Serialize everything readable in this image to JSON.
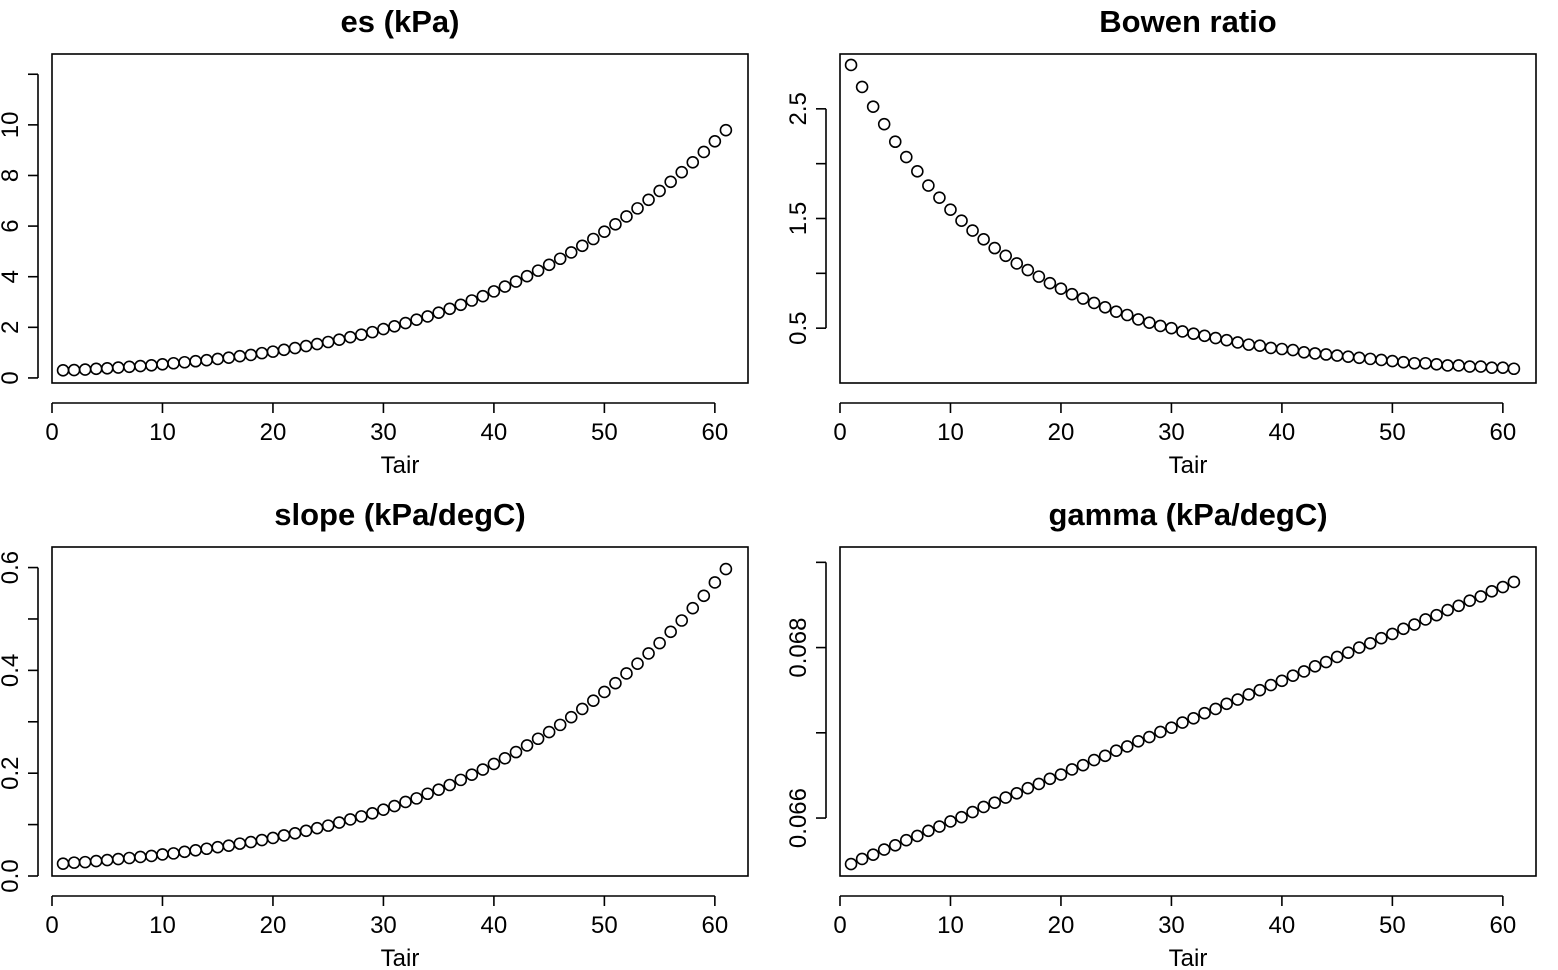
{
  "chart_data": [
    {
      "type": "scatter",
      "title": "es (kPa)",
      "xlabel": "Tair",
      "ylabel": "",
      "xlim": [
        0,
        63
      ],
      "ylim": [
        -0.2,
        12.8
      ],
      "xticks": [
        "0",
        "10",
        "20",
        "30",
        "40",
        "50",
        "60"
      ],
      "xtick_values": [
        0,
        10,
        20,
        30,
        40,
        50,
        60
      ],
      "yticks": [
        "0",
        "2",
        "4",
        "6",
        "8",
        "10"
      ],
      "ytick_values": [
        0,
        2,
        4,
        6,
        8,
        10
      ],
      "extra_y_tick_values": [
        12
      ],
      "x": [
        1,
        2,
        3,
        4,
        5,
        6,
        7,
        8,
        9,
        10,
        11,
        12,
        13,
        14,
        15,
        16,
        17,
        18,
        19,
        20,
        21,
        22,
        23,
        24,
        25,
        26,
        27,
        28,
        29,
        30,
        31,
        32,
        33,
        34,
        35,
        36,
        37,
        38,
        39,
        40,
        41,
        42,
        43,
        44,
        45,
        46,
        47,
        48,
        49,
        50,
        51,
        52,
        53,
        54,
        55,
        56,
        57,
        58,
        59,
        60,
        61
      ],
      "y": [
        0.3,
        0.31,
        0.33,
        0.36,
        0.38,
        0.41,
        0.44,
        0.47,
        0.5,
        0.54,
        0.58,
        0.62,
        0.66,
        0.7,
        0.75,
        0.8,
        0.86,
        0.91,
        0.98,
        1.04,
        1.11,
        1.18,
        1.26,
        1.34,
        1.42,
        1.51,
        1.61,
        1.71,
        1.81,
        1.93,
        2.04,
        2.17,
        2.3,
        2.43,
        2.58,
        2.73,
        2.89,
        3.06,
        3.23,
        3.42,
        3.61,
        3.81,
        4.02,
        4.24,
        4.47,
        4.71,
        4.96,
        5.22,
        5.49,
        5.78,
        6.07,
        6.38,
        6.7,
        7.04,
        7.39,
        7.75,
        8.13,
        8.52,
        8.93,
        9.35,
        9.79
      ]
    },
    {
      "type": "scatter",
      "title": "Bowen ratio",
      "xlabel": "Tair",
      "ylabel": "",
      "xlim": [
        0,
        63
      ],
      "ylim": [
        0.0,
        3.0
      ],
      "xticks": [
        "0",
        "10",
        "20",
        "30",
        "40",
        "50",
        "60"
      ],
      "xtick_values": [
        0,
        10,
        20,
        30,
        40,
        50,
        60
      ],
      "yticks": [
        "0.5",
        "1.5",
        "2.5"
      ],
      "ytick_values": [
        0.5,
        1.5,
        2.5
      ],
      "extra_y_tick_values": [
        1.0,
        2.0
      ],
      "x": [
        1,
        2,
        3,
        4,
        5,
        6,
        7,
        8,
        9,
        10,
        11,
        12,
        13,
        14,
        15,
        16,
        17,
        18,
        19,
        20,
        21,
        22,
        23,
        24,
        25,
        26,
        27,
        28,
        29,
        30,
        31,
        32,
        33,
        34,
        35,
        36,
        37,
        38,
        39,
        40,
        41,
        42,
        43,
        44,
        45,
        46,
        47,
        48,
        49,
        50,
        51,
        52,
        53,
        54,
        55,
        56,
        57,
        58,
        59,
        60,
        61
      ],
      "y": [
        2.9,
        2.7,
        2.52,
        2.36,
        2.2,
        2.06,
        1.93,
        1.8,
        1.69,
        1.58,
        1.48,
        1.39,
        1.31,
        1.23,
        1.16,
        1.09,
        1.03,
        0.97,
        0.91,
        0.86,
        0.81,
        0.77,
        0.73,
        0.69,
        0.65,
        0.62,
        0.58,
        0.55,
        0.52,
        0.5,
        0.47,
        0.45,
        0.43,
        0.41,
        0.39,
        0.37,
        0.35,
        0.34,
        0.32,
        0.31,
        0.3,
        0.28,
        0.27,
        0.26,
        0.25,
        0.24,
        0.23,
        0.22,
        0.21,
        0.2,
        0.19,
        0.18,
        0.18,
        0.17,
        0.16,
        0.16,
        0.15,
        0.15,
        0.14,
        0.14,
        0.13
      ]
    },
    {
      "type": "scatter",
      "title": "slope (kPa/degC)",
      "xlabel": "Tair",
      "ylabel": "",
      "xlim": [
        0,
        63
      ],
      "ylim": [
        0.0,
        0.64
      ],
      "xticks": [
        "0",
        "10",
        "20",
        "30",
        "40",
        "50",
        "60"
      ],
      "xtick_values": [
        0,
        10,
        20,
        30,
        40,
        50,
        60
      ],
      "yticks": [
        "0.0",
        "0.2",
        "0.4",
        "0.6"
      ],
      "ytick_values": [
        0.0,
        0.2,
        0.4,
        0.6
      ],
      "extra_y_tick_values": [
        0.1,
        0.3,
        0.5
      ],
      "x": [
        1,
        2,
        3,
        4,
        5,
        6,
        7,
        8,
        9,
        10,
        11,
        12,
        13,
        14,
        15,
        16,
        17,
        18,
        19,
        20,
        21,
        22,
        23,
        24,
        25,
        26,
        27,
        28,
        29,
        30,
        31,
        32,
        33,
        34,
        35,
        36,
        37,
        38,
        39,
        40,
        41,
        42,
        43,
        44,
        45,
        46,
        47,
        48,
        49,
        50,
        51,
        52,
        53,
        54,
        55,
        56,
        57,
        58,
        59,
        60,
        61
      ],
      "y": [
        0.024,
        0.026,
        0.027,
        0.029,
        0.031,
        0.033,
        0.035,
        0.037,
        0.039,
        0.042,
        0.044,
        0.047,
        0.05,
        0.053,
        0.056,
        0.059,
        0.063,
        0.066,
        0.07,
        0.074,
        0.079,
        0.083,
        0.088,
        0.093,
        0.098,
        0.104,
        0.11,
        0.116,
        0.122,
        0.129,
        0.136,
        0.144,
        0.151,
        0.16,
        0.168,
        0.177,
        0.187,
        0.197,
        0.207,
        0.218,
        0.229,
        0.241,
        0.254,
        0.267,
        0.28,
        0.294,
        0.309,
        0.325,
        0.341,
        0.358,
        0.375,
        0.394,
        0.413,
        0.433,
        0.453,
        0.475,
        0.497,
        0.521,
        0.545,
        0.571,
        0.597
      ]
    },
    {
      "type": "scatter",
      "title": "gamma (kPa/degC)",
      "xlabel": "Tair",
      "ylabel": "",
      "xlim": [
        0,
        63
      ],
      "ylim": [
        0.06532,
        0.06918
      ],
      "xticks": [
        "0",
        "10",
        "20",
        "30",
        "40",
        "50",
        "60"
      ],
      "xtick_values": [
        0,
        10,
        20,
        30,
        40,
        50,
        60
      ],
      "yticks": [
        "0.066",
        "0.068"
      ],
      "ytick_values": [
        0.066,
        0.068
      ],
      "extra_y_tick_values": [
        0.067,
        0.069
      ],
      "x": [
        1,
        2,
        3,
        4,
        5,
        6,
        7,
        8,
        9,
        10,
        11,
        12,
        13,
        14,
        15,
        16,
        17,
        18,
        19,
        20,
        21,
        22,
        23,
        24,
        25,
        26,
        27,
        28,
        29,
        30,
        31,
        32,
        33,
        34,
        35,
        36,
        37,
        38,
        39,
        40,
        41,
        42,
        43,
        44,
        45,
        46,
        47,
        48,
        49,
        50,
        51,
        52,
        53,
        54,
        55,
        56,
        57,
        58,
        59,
        60,
        61
      ],
      "y": [
        0.06546,
        0.06552,
        0.06557,
        0.06563,
        0.06568,
        0.06574,
        0.06579,
        0.06585,
        0.0659,
        0.06596,
        0.06601,
        0.06607,
        0.06613,
        0.06618,
        0.06624,
        0.06629,
        0.06635,
        0.0664,
        0.06646,
        0.06651,
        0.06657,
        0.06662,
        0.06668,
        0.06673,
        0.06679,
        0.06684,
        0.0669,
        0.06695,
        0.06701,
        0.06706,
        0.06712,
        0.06717,
        0.06723,
        0.06728,
        0.06734,
        0.06739,
        0.06745,
        0.0675,
        0.06756,
        0.06761,
        0.06767,
        0.06772,
        0.06778,
        0.06783,
        0.06789,
        0.06794,
        0.068,
        0.06805,
        0.06811,
        0.06816,
        0.06822,
        0.06827,
        0.06833,
        0.06838,
        0.06844,
        0.06849,
        0.06855,
        0.0686,
        0.06866,
        0.06871,
        0.06877
      ]
    }
  ]
}
